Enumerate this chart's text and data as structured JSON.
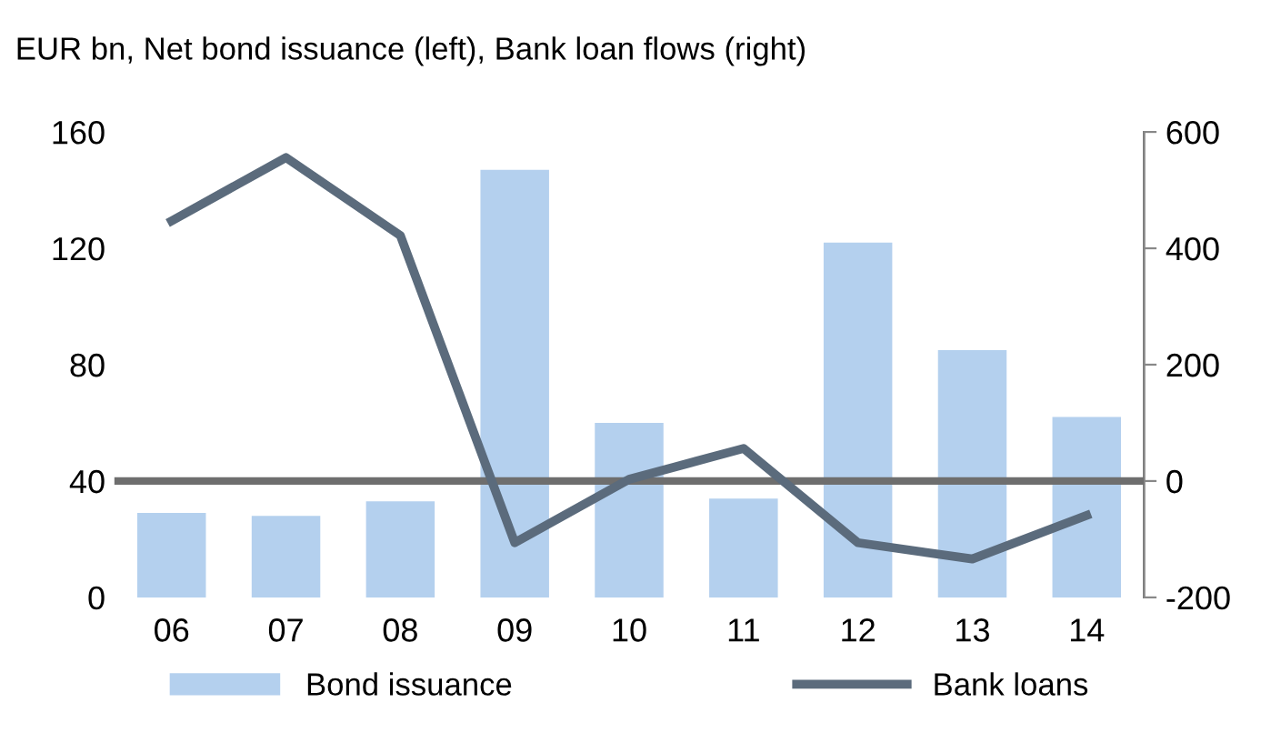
{
  "chart_data": {
    "type": "bar",
    "title": "EUR bn, Net bond issuance (left), Bank loan flows (right)",
    "categories": [
      "06",
      "07",
      "08",
      "09",
      "10",
      "11",
      "12",
      "13",
      "14"
    ],
    "series": [
      {
        "name": "Bond issuance",
        "color": "#b4d0ee",
        "values": [
          29,
          28,
          33,
          147,
          60,
          34,
          122,
          85,
          62
        ]
      },
      {
        "name": "Bank loans",
        "type": "line",
        "axis": "y2",
        "color": "#5b6b7c",
        "values": [
          447,
          556,
          422,
          -106,
          3,
          56,
          -106,
          -134,
          -59
        ]
      }
    ],
    "ylim": [
      0,
      160
    ],
    "yticks": [
      0,
      40,
      80,
      120,
      160
    ],
    "y2lim": [
      -200,
      600
    ],
    "y2ticks": [
      -200,
      0,
      200,
      400,
      600
    ],
    "ref_lines": [
      {
        "axis": "y2",
        "value": 0,
        "color": "#6e6e6e"
      }
    ],
    "grid": false,
    "legend": "bottom",
    "marker": "none",
    "line_style": "solid"
  }
}
